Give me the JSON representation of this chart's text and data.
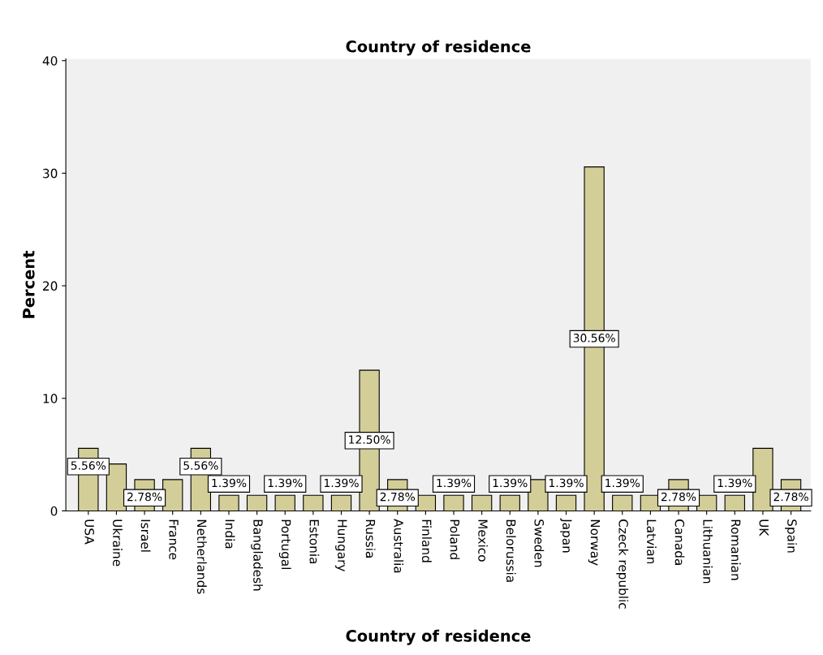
{
  "chart_data": {
    "type": "bar",
    "title": "Country of residence",
    "xlabel": "Country of residence",
    "ylabel": "Percent",
    "categories": [
      "USA",
      "Ukraine",
      "Israel",
      "France",
      "Netherlands",
      "India",
      "Bangladesh",
      "Portugal",
      "Estonia",
      "Hungary",
      "Russia",
      "Australia",
      "Finland",
      "Poland",
      "Mexico",
      "Belorussia",
      "Sweden",
      "Japan",
      "Norway",
      "Czeck republic",
      "Latvian",
      "Canada",
      "Lithuanian",
      "Romanian",
      "UK",
      "Spain"
    ],
    "values": [
      5.56,
      4.17,
      2.78,
      2.78,
      5.56,
      1.39,
      1.39,
      1.39,
      1.39,
      1.39,
      12.5,
      2.78,
      1.39,
      1.39,
      1.39,
      1.39,
      2.78,
      1.39,
      30.56,
      1.39,
      1.39,
      2.78,
      1.39,
      1.39,
      5.56,
      2.78
    ],
    "value_labels": [
      "5.56%",
      null,
      "2.78%",
      null,
      "5.56%",
      "1.39%",
      null,
      "1.39%",
      null,
      "1.39%",
      "12.50%",
      "2.78%",
      null,
      "1.39%",
      null,
      "1.39%",
      null,
      "1.39%",
      "30.56%",
      "1.39%",
      null,
      "2.78%",
      null,
      "1.39%",
      null,
      "2.78%"
    ],
    "color": "#d3ce98",
    "ylim": [
      0,
      40.15
    ],
    "yticks": [
      0,
      10,
      20,
      30,
      40
    ],
    "grid": false,
    "legend": false
  }
}
